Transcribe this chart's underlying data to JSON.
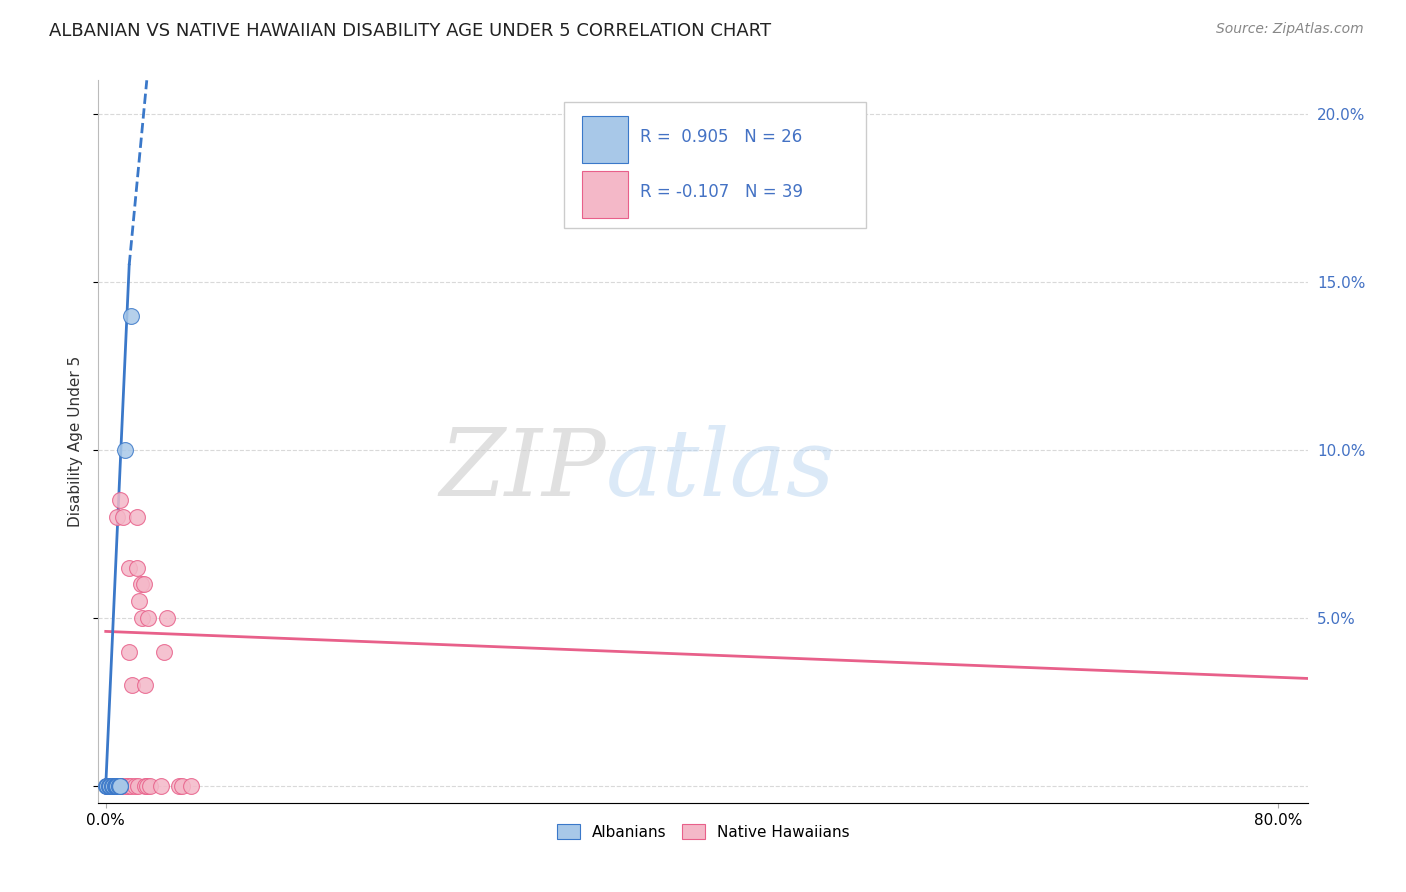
{
  "title": "ALBANIAN VS NATIVE HAWAIIAN DISABILITY AGE UNDER 5 CORRELATION CHART",
  "source": "Source: ZipAtlas.com",
  "ylabel": "Disability Age Under 5",
  "legend_albanian_R": "R =  0.905",
  "legend_albanian_N": "N = 26",
  "legend_hawaiian_R": "R = -0.107",
  "legend_hawaiian_N": "N = 39",
  "albanian_color": "#a8c8e8",
  "hawaiian_color": "#f4b8c8",
  "trendline_albanian_color": "#3a78c9",
  "trendline_hawaiian_color": "#e8608a",
  "albanian_points": [
    [
      0.0,
      0.0
    ],
    [
      0.001,
      0.0
    ],
    [
      0.001,
      0.0
    ],
    [
      0.002,
      0.0
    ],
    [
      0.002,
      0.0
    ],
    [
      0.003,
      0.0
    ],
    [
      0.003,
      0.0
    ],
    [
      0.003,
      0.0
    ],
    [
      0.004,
      0.0
    ],
    [
      0.004,
      0.0
    ],
    [
      0.005,
      0.0
    ],
    [
      0.005,
      0.0
    ],
    [
      0.006,
      0.0
    ],
    [
      0.006,
      0.0
    ],
    [
      0.007,
      0.0
    ],
    [
      0.007,
      0.0
    ],
    [
      0.007,
      0.0
    ],
    [
      0.008,
      0.0
    ],
    [
      0.008,
      0.0
    ],
    [
      0.008,
      0.0
    ],
    [
      0.009,
      0.0
    ],
    [
      0.009,
      0.0
    ],
    [
      0.01,
      0.0
    ],
    [
      0.01,
      0.0
    ],
    [
      0.013,
      0.1
    ],
    [
      0.017,
      0.14
    ]
  ],
  "hawaiian_points": [
    [
      0.001,
      0.0
    ],
    [
      0.003,
      0.0
    ],
    [
      0.004,
      0.0
    ],
    [
      0.005,
      0.0
    ],
    [
      0.005,
      0.0
    ],
    [
      0.006,
      0.0
    ],
    [
      0.007,
      0.0
    ],
    [
      0.008,
      0.0
    ],
    [
      0.008,
      0.08
    ],
    [
      0.009,
      0.0
    ],
    [
      0.01,
      0.0
    ],
    [
      0.01,
      0.085
    ],
    [
      0.011,
      0.0
    ],
    [
      0.012,
      0.08
    ],
    [
      0.014,
      0.0
    ],
    [
      0.015,
      0.0
    ],
    [
      0.016,
      0.04
    ],
    [
      0.016,
      0.065
    ],
    [
      0.017,
      0.0
    ],
    [
      0.018,
      0.03
    ],
    [
      0.02,
      0.0
    ],
    [
      0.021,
      0.065
    ],
    [
      0.021,
      0.08
    ],
    [
      0.022,
      0.0
    ],
    [
      0.023,
      0.055
    ],
    [
      0.024,
      0.06
    ],
    [
      0.025,
      0.05
    ],
    [
      0.026,
      0.06
    ],
    [
      0.027,
      0.0
    ],
    [
      0.027,
      0.03
    ],
    [
      0.028,
      0.0
    ],
    [
      0.029,
      0.05
    ],
    [
      0.03,
      0.0
    ],
    [
      0.038,
      0.0
    ],
    [
      0.04,
      0.04
    ],
    [
      0.042,
      0.05
    ],
    [
      0.05,
      0.0
    ],
    [
      0.052,
      0.0
    ],
    [
      0.058,
      0.0
    ]
  ],
  "xmin": -0.005,
  "xmax": 0.82,
  "ymin": -0.005,
  "ymax": 0.21,
  "ytick_positions": [
    0.0,
    0.05,
    0.1,
    0.15,
    0.2
  ],
  "ytick_labels": [
    "",
    "5.0%",
    "10.0%",
    "15.0%",
    "20.0%"
  ],
  "grid_color": "#d0d0d0",
  "background_color": "#ffffff",
  "title_fontsize": 13,
  "label_fontsize": 11,
  "tick_fontsize": 11,
  "tick_color": "#4472c4",
  "albanian_trendline_solid": [
    [
      0.0,
      0.0
    ],
    [
      0.016,
      0.155
    ]
  ],
  "albanian_trendline_dashed": [
    [
      0.016,
      0.155
    ],
    [
      0.028,
      0.21
    ]
  ],
  "hawaiian_trendline": [
    [
      0.0,
      0.046
    ],
    [
      0.82,
      0.032
    ]
  ]
}
